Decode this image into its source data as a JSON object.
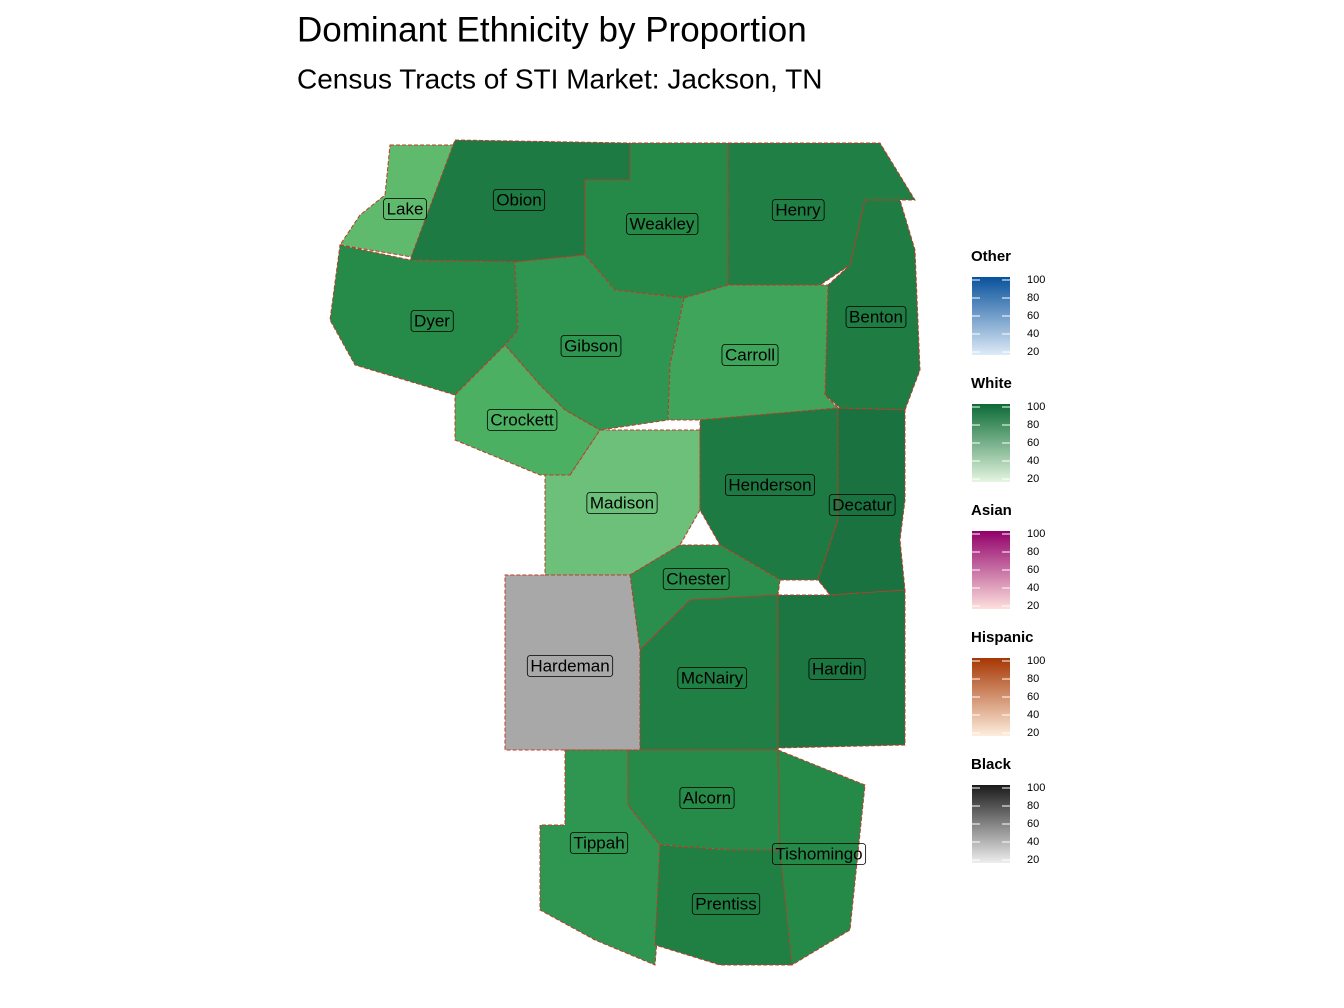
{
  "title": "Dominant Ethnicity by Proportion",
  "subtitle": "Census Tracts of STI Market: Jackson, TN",
  "counties": [
    "Lake",
    "Obion",
    "Weakley",
    "Henry",
    "Benton",
    "Dyer",
    "Gibson",
    "Carroll",
    "Crockett",
    "Madison",
    "Henderson",
    "Decatur",
    "Chester",
    "Hardeman",
    "McNairy",
    "Hardin",
    "Alcorn",
    "Tippah",
    "Tishomingo",
    "Prentiss"
  ],
  "legend": [
    {
      "title": "Other",
      "ticks": [
        100,
        80,
        60,
        40,
        20
      ]
    },
    {
      "title": "White",
      "ticks": [
        100,
        80,
        60,
        40,
        20
      ]
    },
    {
      "title": "Asian",
      "ticks": [
        100,
        80,
        60,
        40,
        20
      ]
    },
    {
      "title": "Hispanic",
      "ticks": [
        100,
        80,
        60,
        40,
        20
      ]
    },
    {
      "title": "Black",
      "ticks": [
        100,
        80,
        60,
        40,
        20
      ]
    }
  ]
}
